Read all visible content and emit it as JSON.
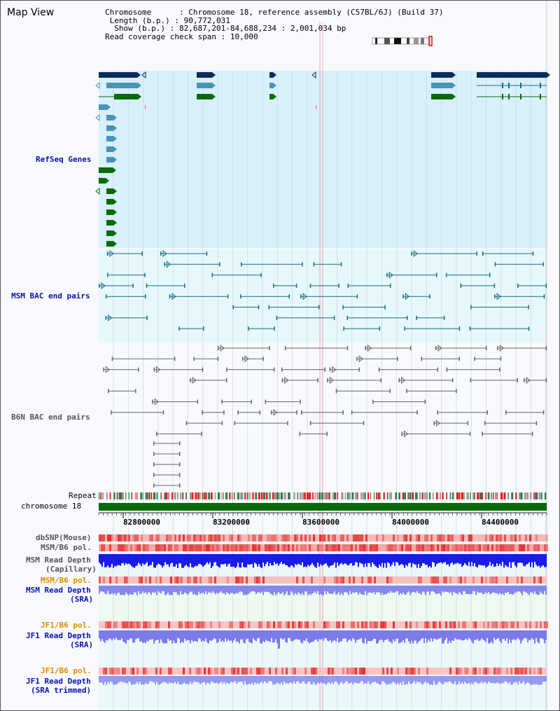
{
  "title": "Map View",
  "info": {
    "chromosome_key": "Chromosome",
    "chromosome_val": "Chromosome 18, reference assembly (C57BL/6J) (Build 37)",
    "length_key": "Length (b.p.)",
    "length_val": "90,772,031",
    "show_key": "Show (b.p.)",
    "show_val": "82,687,201-84,688,234 : 2,001,034 bp",
    "coverage_key": "Read coverage check span",
    "coverage_val": "10,000"
  },
  "track_labels": {
    "refseq": "RefSeq Genes",
    "msm_bac": "MSM BAC end pairs",
    "b6n_bac": "B6N BAC end pairs",
    "repeat": "Repeat",
    "chromosome": "chromosome 18",
    "dbsnp": "dbSNP(Mouse)",
    "msm_b6_pol": "MSM/B6 pol.",
    "msm_depth_1": "MSM Read Depth",
    "msm_depth_2": "(Capillary)",
    "msm_b6_pol_sra": "MSM/B6 pol.",
    "msm_sra_depth_1": "MSM Read Depth",
    "msm_sra_depth_2": "(SRA)",
    "jf1_pol": "JF1/B6 pol.",
    "jf1_depth_1": "JF1 Read Depth",
    "jf1_depth_2": "(SRA)",
    "jf1_pol_trim": "JF1/B6 pol.",
    "jf1_trim_1": "JF1 Read Depth",
    "jf1_trim_2": "(SRA trimmed)"
  },
  "axis_ticks": [
    "82800000",
    "83200000",
    "83600000",
    "84000000",
    "84400000"
  ],
  "colors": {
    "refseq_bg": "#d8f0fa",
    "bac_bg": "#e6f8fa",
    "navy_gene": "#0a2a5a",
    "blue_gene": "#4a93b8",
    "green_gene": "#0a6a0a",
    "msm_bac": "#1a6a8a",
    "b6n_bac": "#666666",
    "depth_capillary": "#1a1aee",
    "depth_sra": "#7a7ae8",
    "pol_red": "#e83030",
    "chromosome_bar": "#0a6a0a"
  }
}
